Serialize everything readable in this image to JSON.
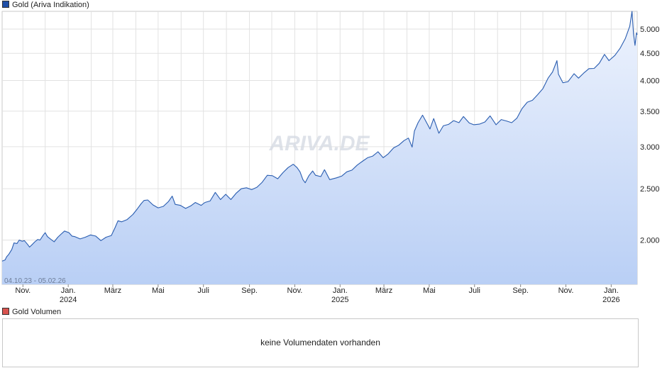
{
  "legend_main": {
    "label": "Gold (Ariva Indikation)",
    "color": "#1f4fa8"
  },
  "legend_volume": {
    "label": "Gold Volumen",
    "color": "#d9534f"
  },
  "watermark": "ARIVA.DE",
  "date_range": "04.10.23 - 05.02.26",
  "volume_message": "keine Volumendaten vorhanden",
  "chart_data": {
    "type": "area",
    "title": "Gold (Ariva Indikation)",
    "xlabel": "",
    "ylabel": "",
    "y_scale": "log",
    "ylim": [
      1650,
      5400
    ],
    "xlim": [
      "2023-10-04",
      "2026-02-05"
    ],
    "grid": true,
    "legend_position": "top-left",
    "colors": {
      "line": "#2a5db0",
      "fill_top": "#eef3fd",
      "fill_bottom": "#b9cff5"
    },
    "y_ticks": [
      {
        "value": 2000,
        "label": "2.000"
      },
      {
        "value": 2500,
        "label": "2.500"
      },
      {
        "value": 3000,
        "label": "3.000"
      },
      {
        "value": 3500,
        "label": "3.500"
      },
      {
        "value": 4000,
        "label": "4.000"
      },
      {
        "value": 4500,
        "label": "4.500"
      },
      {
        "value": 5000,
        "label": "5.000"
      }
    ],
    "x_ticks": [
      {
        "date": "2023-11-01",
        "label": "Nov.",
        "year": ""
      },
      {
        "date": "2024-01-01",
        "label": "Jan.",
        "year": "2024"
      },
      {
        "date": "2024-03-01",
        "label": "März",
        "year": ""
      },
      {
        "date": "2024-05-01",
        "label": "Mai",
        "year": ""
      },
      {
        "date": "2024-07-01",
        "label": "Juli",
        "year": ""
      },
      {
        "date": "2024-09-01",
        "label": "Sep.",
        "year": ""
      },
      {
        "date": "2024-11-01",
        "label": "Nov.",
        "year": ""
      },
      {
        "date": "2025-01-01",
        "label": "Jan.",
        "year": "2025"
      },
      {
        "date": "2025-03-01",
        "label": "März",
        "year": ""
      },
      {
        "date": "2025-05-01",
        "label": "Mai",
        "year": ""
      },
      {
        "date": "2025-07-01",
        "label": "Juli",
        "year": ""
      },
      {
        "date": "2025-09-01",
        "label": "Sep.",
        "year": ""
      },
      {
        "date": "2025-11-01",
        "label": "Nov.",
        "year": ""
      },
      {
        "date": "2026-01-01",
        "label": "Jan.",
        "year": "2026"
      }
    ],
    "series": [
      {
        "values": [
          [
            "2023-10-04",
            1825
          ],
          [
            "2023-10-08",
            1835
          ],
          [
            "2023-10-10",
            1860
          ],
          [
            "2023-10-13",
            1880
          ],
          [
            "2023-10-17",
            1920
          ],
          [
            "2023-10-20",
            1975
          ],
          [
            "2023-10-24",
            1970
          ],
          [
            "2023-10-27",
            2000
          ],
          [
            "2023-10-31",
            1990
          ],
          [
            "2023-11-03",
            1995
          ],
          [
            "2023-11-07",
            1965
          ],
          [
            "2023-11-10",
            1940
          ],
          [
            "2023-11-14",
            1965
          ],
          [
            "2023-11-17",
            1985
          ],
          [
            "2023-11-21",
            2005
          ],
          [
            "2023-11-24",
            2000
          ],
          [
            "2023-11-28",
            2040
          ],
          [
            "2023-12-01",
            2065
          ],
          [
            "2023-12-04",
            2030
          ],
          [
            "2023-12-08",
            2010
          ],
          [
            "2023-12-13",
            1985
          ],
          [
            "2023-12-18",
            2025
          ],
          [
            "2023-12-22",
            2050
          ],
          [
            "2023-12-27",
            2080
          ],
          [
            "2024-01-02",
            2065
          ],
          [
            "2024-01-06",
            2035
          ],
          [
            "2024-01-10",
            2030
          ],
          [
            "2024-01-17",
            2010
          ],
          [
            "2024-01-24",
            2025
          ],
          [
            "2024-01-31",
            2045
          ],
          [
            "2024-02-07",
            2035
          ],
          [
            "2024-02-14",
            1995
          ],
          [
            "2024-02-21",
            2025
          ],
          [
            "2024-02-28",
            2040
          ],
          [
            "2024-03-04",
            2110
          ],
          [
            "2024-03-08",
            2175
          ],
          [
            "2024-03-13",
            2165
          ],
          [
            "2024-03-20",
            2185
          ],
          [
            "2024-03-28",
            2235
          ],
          [
            "2024-04-03",
            2290
          ],
          [
            "2024-04-08",
            2340
          ],
          [
            "2024-04-12",
            2375
          ],
          [
            "2024-04-17",
            2380
          ],
          [
            "2024-04-24",
            2330
          ],
          [
            "2024-05-01",
            2300
          ],
          [
            "2024-05-08",
            2315
          ],
          [
            "2024-05-15",
            2365
          ],
          [
            "2024-05-20",
            2420
          ],
          [
            "2024-05-24",
            2335
          ],
          [
            "2024-05-31",
            2325
          ],
          [
            "2024-06-07",
            2295
          ],
          [
            "2024-06-14",
            2320
          ],
          [
            "2024-06-20",
            2355
          ],
          [
            "2024-06-28",
            2325
          ],
          [
            "2024-07-03",
            2355
          ],
          [
            "2024-07-10",
            2370
          ],
          [
            "2024-07-17",
            2460
          ],
          [
            "2024-07-24",
            2385
          ],
          [
            "2024-07-31",
            2440
          ],
          [
            "2024-08-07",
            2385
          ],
          [
            "2024-08-14",
            2450
          ],
          [
            "2024-08-21",
            2500
          ],
          [
            "2024-08-28",
            2510
          ],
          [
            "2024-09-04",
            2490
          ],
          [
            "2024-09-11",
            2515
          ],
          [
            "2024-09-18",
            2570
          ],
          [
            "2024-09-25",
            2650
          ],
          [
            "2024-10-02",
            2645
          ],
          [
            "2024-10-09",
            2610
          ],
          [
            "2024-10-16",
            2680
          ],
          [
            "2024-10-23",
            2740
          ],
          [
            "2024-10-30",
            2780
          ],
          [
            "2024-11-04",
            2740
          ],
          [
            "2024-11-08",
            2690
          ],
          [
            "2024-11-12",
            2600
          ],
          [
            "2024-11-15",
            2565
          ],
          [
            "2024-11-20",
            2645
          ],
          [
            "2024-11-25",
            2700
          ],
          [
            "2024-11-29",
            2650
          ],
          [
            "2024-12-06",
            2635
          ],
          [
            "2024-12-11",
            2715
          ],
          [
            "2024-12-18",
            2600
          ],
          [
            "2024-12-27",
            2620
          ],
          [
            "2025-01-03",
            2640
          ],
          [
            "2025-01-10",
            2690
          ],
          [
            "2025-01-17",
            2710
          ],
          [
            "2025-01-24",
            2770
          ],
          [
            "2025-01-31",
            2815
          ],
          [
            "2025-02-07",
            2860
          ],
          [
            "2025-02-14",
            2880
          ],
          [
            "2025-02-21",
            2935
          ],
          [
            "2025-02-28",
            2860
          ],
          [
            "2025-03-07",
            2910
          ],
          [
            "2025-03-14",
            2985
          ],
          [
            "2025-03-21",
            3020
          ],
          [
            "2025-03-28",
            3080
          ],
          [
            "2025-04-03",
            3115
          ],
          [
            "2025-04-08",
            2995
          ],
          [
            "2025-04-11",
            3210
          ],
          [
            "2025-04-16",
            3330
          ],
          [
            "2025-04-22",
            3440
          ],
          [
            "2025-04-28",
            3320
          ],
          [
            "2025-05-02",
            3240
          ],
          [
            "2025-05-07",
            3390
          ],
          [
            "2025-05-14",
            3180
          ],
          [
            "2025-05-20",
            3285
          ],
          [
            "2025-05-27",
            3305
          ],
          [
            "2025-06-03",
            3360
          ],
          [
            "2025-06-10",
            3330
          ],
          [
            "2025-06-16",
            3420
          ],
          [
            "2025-06-24",
            3325
          ],
          [
            "2025-06-30",
            3300
          ],
          [
            "2025-07-08",
            3310
          ],
          [
            "2025-07-15",
            3340
          ],
          [
            "2025-07-22",
            3430
          ],
          [
            "2025-07-30",
            3300
          ],
          [
            "2025-08-06",
            3375
          ],
          [
            "2025-08-13",
            3355
          ],
          [
            "2025-08-20",
            3330
          ],
          [
            "2025-08-27",
            3395
          ],
          [
            "2025-09-03",
            3540
          ],
          [
            "2025-09-10",
            3640
          ],
          [
            "2025-09-17",
            3670
          ],
          [
            "2025-09-24",
            3760
          ],
          [
            "2025-10-01",
            3860
          ],
          [
            "2025-10-08",
            4040
          ],
          [
            "2025-10-14",
            4150
          ],
          [
            "2025-10-20",
            4360
          ],
          [
            "2025-10-22",
            4110
          ],
          [
            "2025-10-28",
            3960
          ],
          [
            "2025-11-04",
            3980
          ],
          [
            "2025-11-12",
            4120
          ],
          [
            "2025-11-18",
            4040
          ],
          [
            "2025-11-25",
            4130
          ],
          [
            "2025-12-02",
            4210
          ],
          [
            "2025-12-09",
            4215
          ],
          [
            "2025-12-16",
            4310
          ],
          [
            "2025-12-23",
            4480
          ],
          [
            "2025-12-29",
            4360
          ],
          [
            "2026-01-06",
            4460
          ],
          [
            "2026-01-13",
            4600
          ],
          [
            "2026-01-20",
            4800
          ],
          [
            "2026-01-26",
            5060
          ],
          [
            "2026-01-29",
            5400
          ],
          [
            "2026-01-31",
            4900
          ],
          [
            "2026-02-02",
            4660
          ],
          [
            "2026-02-04",
            4920
          ],
          [
            "2026-02-05",
            4880
          ]
        ]
      }
    ]
  }
}
